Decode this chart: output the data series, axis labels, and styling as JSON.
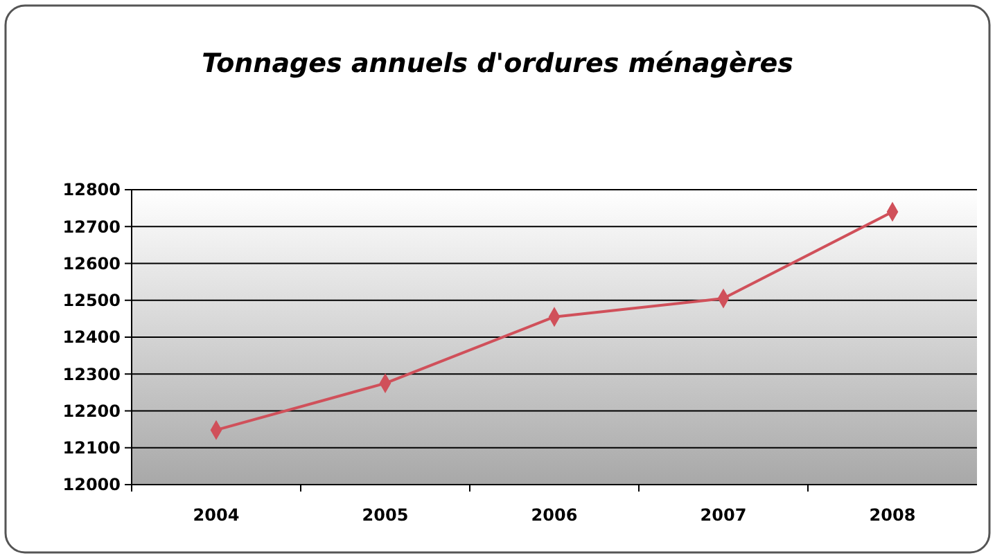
{
  "chart_data": {
    "type": "line",
    "title": "Tonnages annuels d'ordures ménagères",
    "categories": [
      "2004",
      "2005",
      "2006",
      "2007",
      "2008"
    ],
    "series": [
      {
        "color": "#d0505a",
        "values": [
          12148,
          12275,
          12455,
          12505,
          12740
        ]
      }
    ],
    "ylim": [
      12000,
      12800
    ],
    "yticks": [
      12000,
      12100,
      12200,
      12300,
      12400,
      12500,
      12600,
      12700,
      12800
    ],
    "grid": "y",
    "marker": "diamond"
  }
}
